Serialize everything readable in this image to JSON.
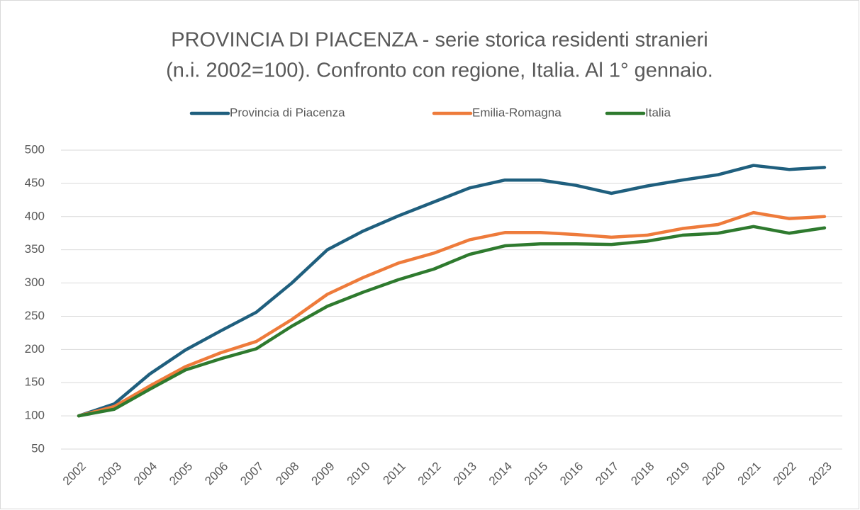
{
  "chart_data": {
    "type": "line",
    "title": [
      "PROVINCIA DI PIACENZA - serie storica residenti stranieri",
      "(n.i. 2002=100). Confronto con regione, Italia. Al 1° gennaio."
    ],
    "categories": [
      "2002",
      "2003",
      "2004",
      "2005",
      "2006",
      "2007",
      "2008",
      "2009",
      "2010",
      "2011",
      "2012",
      "2013",
      "2014",
      "2015",
      "2016",
      "2017",
      "2018",
      "2019",
      "2020",
      "2021",
      "2022",
      "2023"
    ],
    "series": [
      {
        "name": "Provincia di Piacenza",
        "color": "#1f5f7e",
        "values": [
          100,
          118,
          163,
          199,
          228,
          256,
          300,
          350,
          378,
          401,
          422,
          443,
          455,
          455,
          447,
          435,
          446,
          455,
          463,
          477,
          471,
          474
        ]
      },
      {
        "name": "Emilia-Romagna",
        "color": "#ee7b3b",
        "values": [
          100,
          114,
          145,
          174,
          195,
          212,
          245,
          283,
          308,
          330,
          345,
          365,
          376,
          376,
          373,
          369,
          372,
          382,
          388,
          406,
          397,
          400
        ]
      },
      {
        "name": "Italia",
        "color": "#2e7a2e",
        "values": [
          100,
          110,
          140,
          169,
          186,
          201,
          235,
          265,
          286,
          305,
          321,
          343,
          356,
          359,
          359,
          358,
          363,
          372,
          375,
          385,
          375,
          383
        ]
      }
    ],
    "ylim": [
      50,
      500
    ],
    "yticks": [
      50,
      100,
      150,
      200,
      250,
      300,
      350,
      400,
      450,
      500
    ],
    "grid": true,
    "legend": "top"
  }
}
